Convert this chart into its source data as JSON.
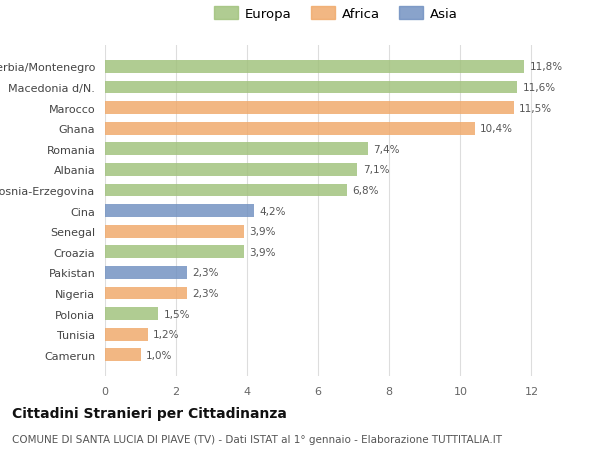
{
  "categories": [
    "Serbia/Montenegro",
    "Macedonia d/N.",
    "Marocco",
    "Ghana",
    "Romania",
    "Albania",
    "Bosnia-Erzegovina",
    "Cina",
    "Senegal",
    "Croazia",
    "Pakistan",
    "Nigeria",
    "Polonia",
    "Tunisia",
    "Camerun"
  ],
  "values": [
    11.8,
    11.6,
    11.5,
    10.4,
    7.4,
    7.1,
    6.8,
    4.2,
    3.9,
    3.9,
    2.3,
    2.3,
    1.5,
    1.2,
    1.0
  ],
  "labels": [
    "11,8%",
    "11,6%",
    "11,5%",
    "10,4%",
    "7,4%",
    "7,1%",
    "6,8%",
    "4,2%",
    "3,9%",
    "3,9%",
    "2,3%",
    "2,3%",
    "1,5%",
    "1,2%",
    "1,0%"
  ],
  "colors": [
    "#9fc17a",
    "#9fc17a",
    "#f0a868",
    "#f0a868",
    "#9fc17a",
    "#9fc17a",
    "#9fc17a",
    "#6f8fc0",
    "#f0a868",
    "#9fc17a",
    "#6f8fc0",
    "#f0a868",
    "#9fc17a",
    "#f0a868",
    "#f0a868"
  ],
  "legend_labels": [
    "Europa",
    "Africa",
    "Asia"
  ],
  "legend_colors": [
    "#9fc17a",
    "#f0a868",
    "#6f8fc0"
  ],
  "title": "Cittadini Stranieri per Cittadinanza",
  "subtitle": "COMUNE DI SANTA LUCIA DI PIAVE (TV) - Dati ISTAT al 1° gennaio - Elaborazione TUTTITALIA.IT",
  "xlim": [
    0,
    13
  ],
  "xticks": [
    0,
    2,
    4,
    6,
    8,
    10,
    12
  ],
  "background_color": "#ffffff",
  "bar_height": 0.62,
  "label_fontsize": 7.5,
  "tick_fontsize": 8,
  "legend_fontsize": 9.5,
  "title_fontsize": 10,
  "subtitle_fontsize": 7.5
}
